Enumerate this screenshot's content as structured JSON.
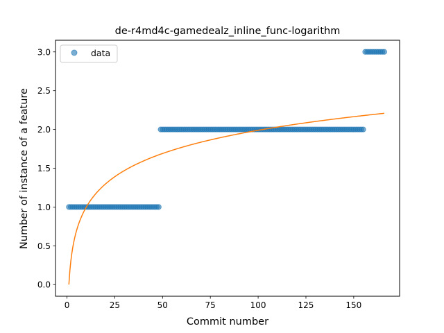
{
  "chart_data": {
    "type": "scatter",
    "title": "de-r4md4c-gamedealz_inline_func-logarithm",
    "xlabel": "Commit number",
    "ylabel": "Number of instance of a feature",
    "xlim": [
      -6,
      174
    ],
    "ylim": [
      -0.15,
      3.15
    ],
    "xticks": [
      0,
      25,
      50,
      75,
      100,
      125,
      150
    ],
    "yticks": [
      0.0,
      0.5,
      1.0,
      1.5,
      2.0,
      2.5,
      3.0
    ],
    "xtick_labels": [
      "0",
      "25",
      "50",
      "75",
      "100",
      "125",
      "150"
    ],
    "ytick_labels": [
      "0.0",
      "0.5",
      "1.0",
      "1.5",
      "2.0",
      "2.5",
      "3.0"
    ],
    "legend": {
      "position": "top-left",
      "entries": [
        "data"
      ]
    },
    "grid": false,
    "series": [
      {
        "name": "data",
        "kind": "scatter",
        "color": "#1f77b4",
        "segments": [
          {
            "x_from": 1,
            "x_to": 48,
            "y": 1
          },
          {
            "x_from": 49,
            "x_to": 155,
            "y": 2
          },
          {
            "x_from": 156,
            "x_to": 166,
            "y": 3
          }
        ]
      },
      {
        "kind": "line",
        "color": "#ff7f0e",
        "x_range": [
          1,
          166
        ],
        "fit": "logarithmic",
        "coefficients": {
          "a": 0.432,
          "b": 0.0
        }
      }
    ]
  }
}
